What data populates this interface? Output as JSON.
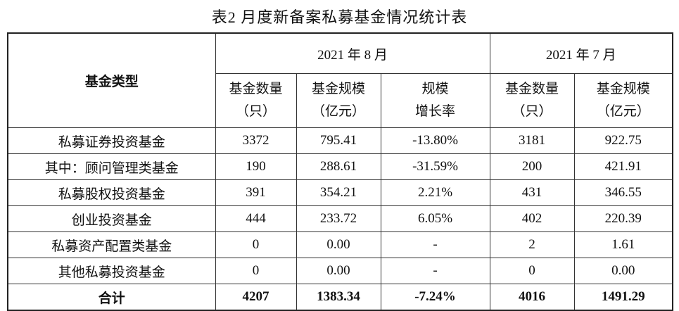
{
  "title": "表2 月度新备案私募基金情况统计表",
  "table": {
    "header": {
      "category": "基金类型",
      "groups": [
        "2021 年 8 月",
        "2021 年 7 月"
      ],
      "columns": [
        [
          "基金数量",
          "（只）"
        ],
        [
          "基金规模",
          "（亿元）"
        ],
        [
          "规模",
          "增长率"
        ],
        [
          "基金数量",
          "（只）"
        ],
        [
          "基金规模",
          "（亿元）"
        ]
      ]
    },
    "rows": [
      [
        "私募证券投资基金",
        "3372",
        "795.41",
        "-13.80%",
        "3181",
        "922.75"
      ],
      [
        "其中：顾问管理类基金",
        "190",
        "288.61",
        "-31.59%",
        "200",
        "421.91"
      ],
      [
        "私募股权投资基金",
        "391",
        "354.21",
        "2.21%",
        "431",
        "346.55"
      ],
      [
        "创业投资基金",
        "444",
        "233.72",
        "6.05%",
        "402",
        "220.39"
      ],
      [
        "私募资产配置类基金",
        "0",
        "0.00",
        "-",
        "2",
        "1.61"
      ],
      [
        "其他私募投资基金",
        "0",
        "0.00",
        "-",
        "0",
        "0.00"
      ]
    ],
    "total": [
      "合计",
      "4207",
      "1383.34",
      "-7.24%",
      "4016",
      "1491.29"
    ]
  }
}
